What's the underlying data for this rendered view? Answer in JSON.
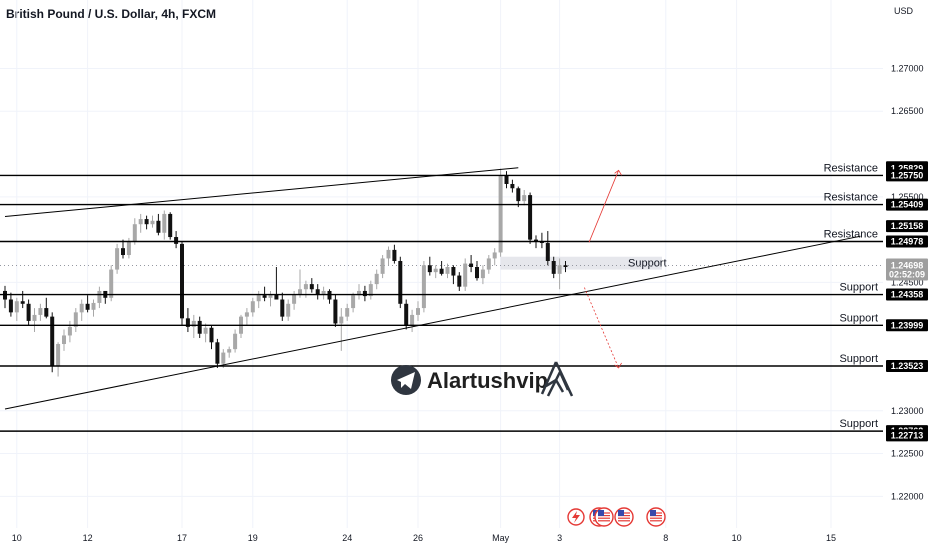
{
  "header": {
    "title": "British Pound / U.S. Dollar, 4h, FXCM",
    "currency": "USD"
  },
  "brand": {
    "name": "Alartushvip"
  },
  "chart_data": {
    "type": "candlestick",
    "title": "British Pound / U.S. Dollar, 4h, FXCM",
    "ylim": [
      1.2163,
      1.278
    ],
    "y_ticks": [
      "1.27000",
      "1.26500",
      "1.25500",
      "1.24500",
      "1.23000",
      "1.22500",
      "1.22000"
    ],
    "y_tick_values": [
      1.27,
      1.265,
      1.255,
      1.245,
      1.23,
      1.225,
      1.22
    ],
    "x_ticks": [
      "10",
      "12",
      "17",
      "19",
      "24",
      "26",
      "May",
      "3",
      "8",
      "10",
      "15"
    ],
    "x_tick_index": [
      2,
      14,
      30,
      42,
      58,
      70,
      84,
      94,
      112,
      124,
      140
    ],
    "current_price": "1.24698",
    "countdown": "02:52:09",
    "levels": [
      {
        "label": "Resistance",
        "price": 1.2575,
        "price_label": "1.25750"
      },
      {
        "label": "Resistance",
        "price": 1.25409,
        "price_label": "1.25409"
      },
      {
        "label": "Resistance",
        "price": 1.24978,
        "price_label": "1.24978"
      },
      {
        "label": "Support",
        "price": 1.24358,
        "price_label": "1.24358"
      },
      {
        "label": "Support",
        "price": 1.23999,
        "price_label": "1.23999"
      },
      {
        "label": "Support",
        "price": 1.23523,
        "price_label": "1.23523"
      },
      {
        "label": "Support",
        "price": 1.22762,
        "price_label": "1.22762"
      }
    ],
    "extra_price_tags": [
      "1.25845",
      "1.25829",
      "1.25158",
      "1.22713"
    ],
    "support_zone": {
      "label": "Support",
      "high": 1.248,
      "low": 1.2465
    },
    "trendlines": [
      {
        "name": "upper",
        "x0": 0,
        "p0": 1.2527,
        "x1": 87,
        "p1": 1.2584
      },
      {
        "name": "lower",
        "x0": 0,
        "p0": 1.2302,
        "x1": 145,
        "p1": 1.2504
      }
    ],
    "projection": {
      "from_index": 99,
      "from_price": 1.2497,
      "up_to_index": 104,
      "up_to_price": 1.2581,
      "down_to_index": 104,
      "down_to_price": 1.235
    },
    "candles": [
      [
        1.244,
        1.2446,
        1.242,
        1.243
      ],
      [
        1.243,
        1.2438,
        1.241,
        1.2415
      ],
      [
        1.2415,
        1.2432,
        1.2405,
        1.2428
      ],
      [
        1.2428,
        1.244,
        1.242,
        1.2425
      ],
      [
        1.2425,
        1.243,
        1.24,
        1.2405
      ],
      [
        1.2405,
        1.242,
        1.2392,
        1.2412
      ],
      [
        1.2412,
        1.2425,
        1.2405,
        1.242
      ],
      [
        1.242,
        1.2432,
        1.2408,
        1.241
      ],
      [
        1.241,
        1.2415,
        1.2345,
        1.2352
      ],
      [
        1.2352,
        1.238,
        1.234,
        1.2378
      ],
      [
        1.2378,
        1.2395,
        1.237,
        1.2388
      ],
      [
        1.2388,
        1.2405,
        1.238,
        1.2398
      ],
      [
        1.2398,
        1.242,
        1.2392,
        1.2415
      ],
      [
        1.2415,
        1.243,
        1.2405,
        1.2425
      ],
      [
        1.2425,
        1.2435,
        1.2415,
        1.2418
      ],
      [
        1.2418,
        1.243,
        1.241,
        1.2426
      ],
      [
        1.2426,
        1.2445,
        1.242,
        1.244
      ],
      [
        1.244,
        1.2438,
        1.2425,
        1.2432
      ],
      [
        1.2432,
        1.247,
        1.2428,
        1.2465
      ],
      [
        1.2465,
        1.2495,
        1.246,
        1.249
      ],
      [
        1.249,
        1.25,
        1.2478,
        1.2482
      ],
      [
        1.2482,
        1.2502,
        1.2478,
        1.2498
      ],
      [
        1.2498,
        1.2525,
        1.2494,
        1.2518
      ],
      [
        1.2518,
        1.253,
        1.2508,
        1.2524
      ],
      [
        1.2524,
        1.2528,
        1.2512,
        1.2518
      ],
      [
        1.2518,
        1.2528,
        1.2514,
        1.2522
      ],
      [
        1.2522,
        1.253,
        1.2505,
        1.2508
      ],
      [
        1.2508,
        1.2534,
        1.25,
        1.253
      ],
      [
        1.253,
        1.2532,
        1.25,
        1.2503
      ],
      [
        1.2503,
        1.251,
        1.249,
        1.2495
      ],
      [
        1.2495,
        1.2498,
        1.24,
        1.2408
      ],
      [
        1.2408,
        1.242,
        1.2392,
        1.2398
      ],
      [
        1.2398,
        1.2412,
        1.2385,
        1.2405
      ],
      [
        1.2405,
        1.241,
        1.2385,
        1.239
      ],
      [
        1.239,
        1.2402,
        1.238,
        1.2397
      ],
      [
        1.2397,
        1.24,
        1.2372,
        1.238
      ],
      [
        1.238,
        1.2384,
        1.235,
        1.2355
      ],
      [
        1.2355,
        1.2372,
        1.235,
        1.2368
      ],
      [
        1.2368,
        1.2375,
        1.2362,
        1.2372
      ],
      [
        1.2372,
        1.2395,
        1.2368,
        1.239
      ],
      [
        1.239,
        1.2412,
        1.2385,
        1.241
      ],
      [
        1.241,
        1.242,
        1.24,
        1.2415
      ],
      [
        1.2415,
        1.2432,
        1.241,
        1.2428
      ],
      [
        1.2428,
        1.244,
        1.242,
        1.2435
      ],
      [
        1.2435,
        1.2445,
        1.2428,
        1.2432
      ],
      [
        1.2432,
        1.244,
        1.2422,
        1.2436
      ],
      [
        1.2436,
        1.2468,
        1.243,
        1.243
      ],
      [
        1.243,
        1.2438,
        1.2405,
        1.241
      ],
      [
        1.241,
        1.243,
        1.2405,
        1.2425
      ],
      [
        1.2425,
        1.244,
        1.2418,
        1.2436
      ],
      [
        1.2436,
        1.2465,
        1.2432,
        1.2442
      ],
      [
        1.2442,
        1.2452,
        1.2432,
        1.2448
      ],
      [
        1.2448,
        1.2455,
        1.2438,
        1.2442
      ],
      [
        1.2442,
        1.2448,
        1.243,
        1.2436
      ],
      [
        1.2436,
        1.2445,
        1.243,
        1.244
      ],
      [
        1.244,
        1.2442,
        1.2425,
        1.243
      ],
      [
        1.243,
        1.2436,
        1.2398,
        1.2402
      ],
      [
        1.2402,
        1.242,
        1.237,
        1.241
      ],
      [
        1.241,
        1.2425,
        1.2405,
        1.242
      ],
      [
        1.242,
        1.2438,
        1.2415,
        1.2435
      ],
      [
        1.2435,
        1.2448,
        1.243,
        1.244
      ],
      [
        1.244,
        1.2446,
        1.2428,
        1.2434
      ],
      [
        1.2434,
        1.2452,
        1.243,
        1.2448
      ],
      [
        1.2448,
        1.2465,
        1.2442,
        1.246
      ],
      [
        1.246,
        1.2482,
        1.2455,
        1.2478
      ],
      [
        1.2478,
        1.2492,
        1.247,
        1.2488
      ],
      [
        1.2488,
        1.2494,
        1.2472,
        1.2475
      ],
      [
        1.2475,
        1.248,
        1.242,
        1.2425
      ],
      [
        1.2425,
        1.243,
        1.2395,
        1.24
      ],
      [
        1.24,
        1.2418,
        1.2392,
        1.2412
      ],
      [
        1.2412,
        1.2428,
        1.2405,
        1.242
      ],
      [
        1.242,
        1.2475,
        1.2415,
        1.247
      ],
      [
        1.247,
        1.248,
        1.2458,
        1.2462
      ],
      [
        1.2462,
        1.247,
        1.2455,
        1.2466
      ],
      [
        1.2466,
        1.2475,
        1.2458,
        1.246
      ],
      [
        1.246,
        1.2472,
        1.2455,
        1.2468
      ],
      [
        1.2468,
        1.247,
        1.2448,
        1.2458
      ],
      [
        1.2458,
        1.2462,
        1.244,
        1.2445
      ],
      [
        1.2445,
        1.2478,
        1.244,
        1.2472
      ],
      [
        1.2472,
        1.2482,
        1.2462,
        1.2468
      ],
      [
        1.2468,
        1.2475,
        1.2452,
        1.2455
      ],
      [
        1.2455,
        1.247,
        1.2448,
        1.2465
      ],
      [
        1.2465,
        1.2482,
        1.246,
        1.2478
      ],
      [
        1.2478,
        1.249,
        1.247,
        1.2485
      ],
      [
        1.2485,
        1.2583,
        1.248,
        1.2575
      ],
      [
        1.2575,
        1.258,
        1.256,
        1.2565
      ],
      [
        1.2565,
        1.257,
        1.2555,
        1.256
      ],
      [
        1.256,
        1.2562,
        1.2538,
        1.2545
      ],
      [
        1.2545,
        1.2558,
        1.254,
        1.2552
      ],
      [
        1.2552,
        1.2555,
        1.2495,
        1.25
      ],
      [
        1.25,
        1.2505,
        1.249,
        1.2498
      ],
      [
        1.2498,
        1.2508,
        1.249,
        1.2496
      ],
      [
        1.2496,
        1.251,
        1.247,
        1.2475
      ],
      [
        1.2475,
        1.248,
        1.2455,
        1.246
      ],
      [
        1.246,
        1.2478,
        1.2442,
        1.247
      ],
      [
        1.247,
        1.2475,
        1.2462,
        1.2468
      ]
    ]
  }
}
